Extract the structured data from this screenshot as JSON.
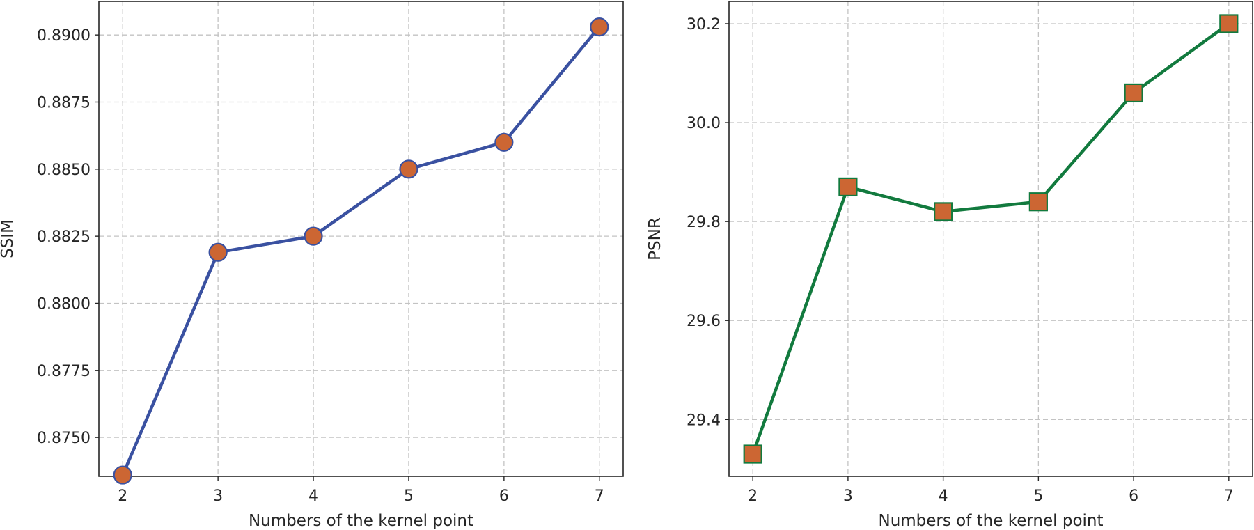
{
  "chart_data": [
    {
      "type": "line",
      "xlabel": "Numbers of the kernel point",
      "ylabel": "SSIM",
      "x": [
        2,
        3,
        4,
        5,
        6,
        7
      ],
      "x_ticks": [
        "2",
        "3",
        "4",
        "5",
        "6",
        "7"
      ],
      "y_ticks": [
        "0.8750",
        "0.8775",
        "0.8800",
        "0.8825",
        "0.8850",
        "0.8875",
        "0.8900"
      ],
      "ylim": [
        0.87355,
        0.89125
      ],
      "grid": true,
      "series": [
        {
          "values": [
            0.8736,
            0.8819,
            0.8825,
            0.885,
            0.886,
            0.8903
          ],
          "line_color": "#3a51a1",
          "marker": "circle",
          "marker_fill": "#cc6633",
          "marker_edge": "#3a51a1"
        }
      ]
    },
    {
      "type": "line",
      "xlabel": "Numbers of the kernel point",
      "ylabel": "PSNR",
      "x": [
        2,
        3,
        4,
        5,
        6,
        7
      ],
      "x_ticks": [
        "2",
        "3",
        "4",
        "5",
        "6",
        "7"
      ],
      "y_ticks": [
        "29.4",
        "29.6",
        "29.8",
        "30.0",
        "30.2"
      ],
      "ylim": [
        29.285,
        30.245
      ],
      "grid": true,
      "series": [
        {
          "values": [
            29.33,
            29.87,
            29.82,
            29.84,
            30.06,
            30.2
          ],
          "line_color": "#127a3e",
          "marker": "square",
          "marker_fill": "#cc6633",
          "marker_edge": "#127a3e"
        }
      ]
    }
  ]
}
